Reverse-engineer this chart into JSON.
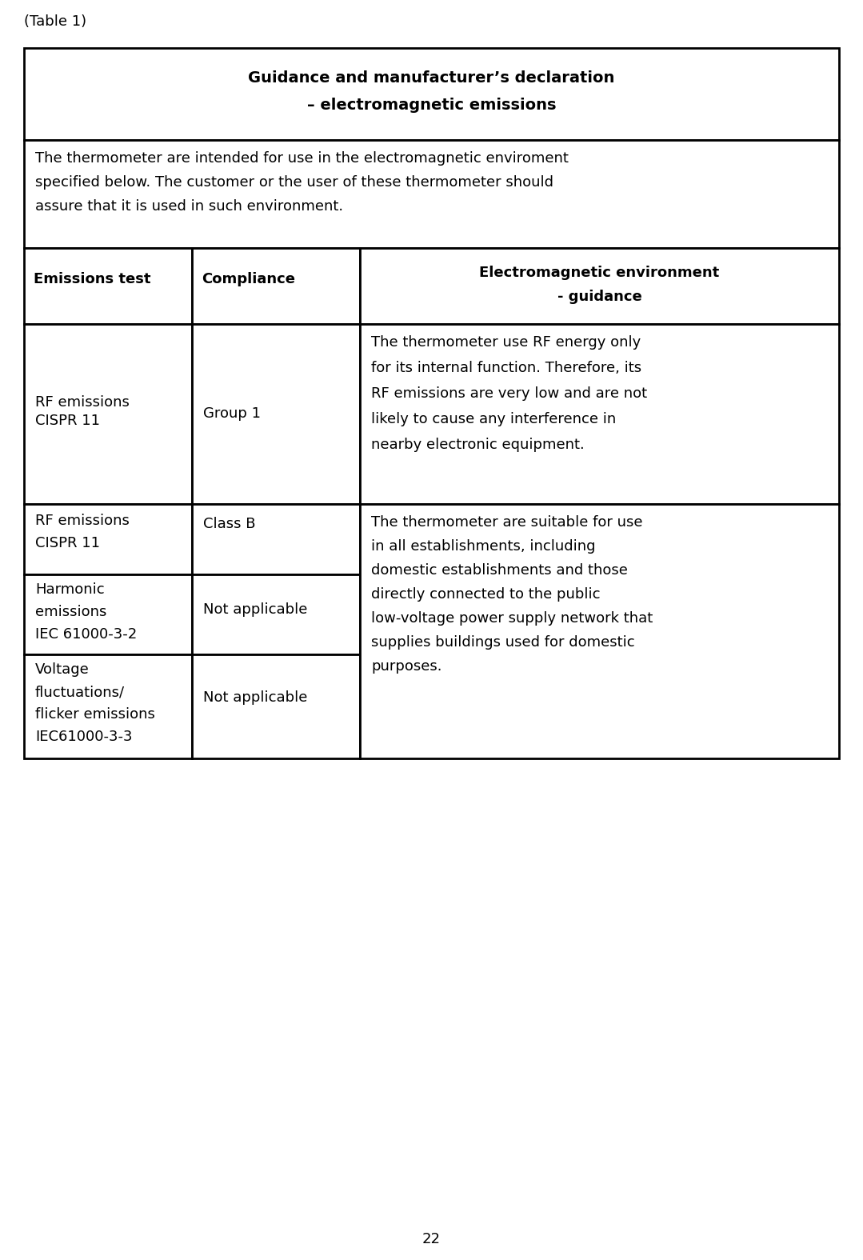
{
  "page_label": "(Table 1)",
  "page_number": "22",
  "table_title_line1": "Guidance and manufacturer’s declaration",
  "table_title_line2": "– electromagnetic emissions",
  "intro_text_lines": [
    "The thermometer are intended for use in the electromagnetic enviroment",
    "specified below. The customer or the user of these thermometer should",
    "assure that it is used in such environment."
  ],
  "col_headers": [
    "Emissions test",
    "Compliance",
    "Electromagnetic environment\n- guidance"
  ],
  "row0_col1": "RF emissions\nCISPR 11",
  "row0_col2": "Group 1",
  "row0_col3_lines": [
    "The thermometer use RF energy only",
    "for its internal function. Therefore, its",
    "RF emissions are very low and are not",
    "likely to cause any interference in",
    "nearby electronic equipment."
  ],
  "row1_col1": "RF emissions\nCISPR 11",
  "row1_col2": "Class B",
  "row2_col1": "Harmonic\nemissions\nIEC 61000-3-2",
  "row2_col2": "Not applicable",
  "row3_col1": "Voltage\nfluctuations/\nflicker emissions\nIEC61000-3-3",
  "row3_col2": "Not applicable",
  "rows123_col3_lines": [
    "The thermometer are suitable for use",
    "in all establishments, including",
    "domestic establishments and those",
    "directly connected to the public",
    "low-voltage power supply network that",
    "supplies buildings used for domestic",
    "purposes."
  ],
  "bg_color": "#ffffff",
  "text_color": "#000000",
  "border_color": "#000000",
  "title_fontsize": 14,
  "header_fontsize": 13,
  "body_fontsize": 13,
  "label_fontsize": 13,
  "page_num_fontsize": 13
}
